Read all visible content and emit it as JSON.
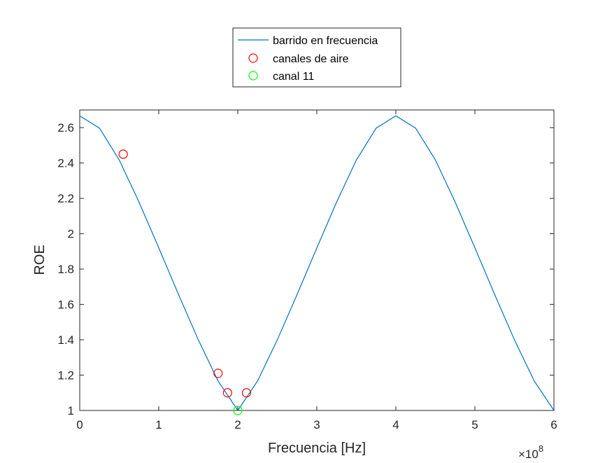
{
  "chart_data": {
    "type": "line",
    "title": "",
    "xlabel": "Frecuencia [Hz]",
    "ylabel": "ROE",
    "x_multiplier_label": "×10",
    "x_multiplier_exponent": "8",
    "xlim": [
      0,
      6
    ],
    "ylim": [
      1,
      2.7
    ],
    "xticks": [
      0,
      1,
      2,
      3,
      4,
      5,
      6
    ],
    "xtick_labels": [
      "0",
      "1",
      "2",
      "3",
      "4",
      "5",
      "6"
    ],
    "yticks": [
      1,
      1.2,
      1.4,
      1.6,
      1.8,
      2,
      2.2,
      2.4,
      2.6
    ],
    "ytick_labels": [
      "1",
      "1.2",
      "1.4",
      "1.6",
      "1.8",
      "2",
      "2.2",
      "2.4",
      "2.6"
    ],
    "grid": false,
    "legend_position": "top-center, outside axes",
    "series": [
      {
        "name": "barrido en frecuencia",
        "kind": "line",
        "color": "#0072BD",
        "x": [
          0,
          0.25,
          0.5,
          0.75,
          1.0,
          1.25,
          1.5,
          1.75,
          2.0,
          2.25,
          2.5,
          2.75,
          3.0,
          3.25,
          3.5,
          3.75,
          4.0,
          4.25,
          4.5,
          4.75,
          5.0,
          5.25,
          5.5,
          5.75,
          6.0
        ],
        "y": [
          2.667,
          2.597,
          2.417,
          2.179,
          1.92,
          1.656,
          1.4,
          1.167,
          1.0,
          1.167,
          1.4,
          1.656,
          1.92,
          2.179,
          2.417,
          2.597,
          2.667,
          2.597,
          2.417,
          2.179,
          1.92,
          1.656,
          1.4,
          1.167,
          1.0
        ]
      },
      {
        "name": "canales de aire",
        "kind": "markers",
        "marker": "circle",
        "color": "#FF0000",
        "x": [
          0.55,
          1.75,
          1.87,
          2.11
        ],
        "y": [
          2.45,
          1.21,
          1.1,
          1.1
        ]
      },
      {
        "name": "canal 11",
        "kind": "markers",
        "marker": "circle",
        "color": "#00FF00",
        "x": [
          2.0
        ],
        "y": [
          1.0
        ]
      }
    ]
  },
  "colors": {
    "axes": "#262626",
    "legend_border": "#262626",
    "background": "#FFFFFF"
  }
}
